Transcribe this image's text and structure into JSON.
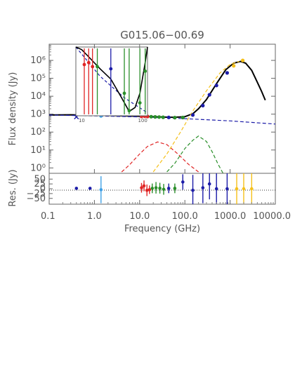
{
  "chart_data": {
    "type": "scatter",
    "title": "G015.06−00.69",
    "xlabel": "Frequency (GHz)",
    "x_scale": "log",
    "xlim": [
      0.1,
      10000
    ],
    "x_tick_labels": [
      "0.1",
      "1.0",
      "10.0",
      "100.0",
      "1000.0",
      "10000.0"
    ],
    "panels": [
      {
        "name": "sed",
        "ylabel": "Flux density (Jy)",
        "y_scale": "log",
        "ylim": [
          0.5,
          8000000
        ],
        "y_tick_labels": [
          "10⁰",
          "10¹",
          "10²",
          "10³",
          "10⁴",
          "10⁵",
          "10⁶"
        ],
        "points": [
          {
            "x": 0.4,
            "y": 700,
            "color": "#1c1ca8",
            "marker": "x"
          },
          {
            "x": 1.4,
            "y": 800,
            "color": "#3ea0e6"
          },
          {
            "x": 11,
            "y": 750,
            "color": "#e02424"
          },
          {
            "x": 13,
            "y": 760,
            "color": "#e02424"
          },
          {
            "x": 15,
            "y": 740,
            "color": "#e02424"
          },
          {
            "x": 18,
            "y": 720,
            "color": "#2a8f2a"
          },
          {
            "x": 22,
            "y": 700,
            "color": "#2a8f2a"
          },
          {
            "x": 27,
            "y": 690,
            "color": "#2a8f2a"
          },
          {
            "x": 33,
            "y": 670,
            "color": "#2a8f2a"
          },
          {
            "x": 44,
            "y": 660,
            "color": "#1c1ca8"
          },
          {
            "x": 60,
            "y": 640,
            "color": "#2a8f2a"
          },
          {
            "x": 90,
            "y": 650,
            "color": "#2a8f2a"
          },
          {
            "x": 150,
            "y": 900,
            "color": "#1c1ca8"
          },
          {
            "x": 250,
            "y": 3000,
            "color": "#1c1ca8"
          },
          {
            "x": 350,
            "y": 12000,
            "color": "#1c1ca8"
          },
          {
            "x": 500,
            "y": 40000,
            "color": "#1c1ca8"
          },
          {
            "x": 860,
            "y": 200000,
            "color": "#1c1ca8"
          },
          {
            "x": 1200,
            "y": 500000,
            "color": "#f5c01a"
          },
          {
            "x": 1900,
            "y": 1000000,
            "color": "#f5c01a"
          }
        ],
        "curves": [
          {
            "component": "total",
            "color": "#000000",
            "dash": "solid",
            "points": [
              [
                0.1,
                900
              ],
              [
                0.3,
                920
              ],
              [
                1,
                870
              ],
              [
                3,
                820
              ],
              [
                10,
                760
              ],
              [
                20,
                720
              ],
              [
                40,
                680
              ],
              [
                60,
                670
              ],
              [
                100,
                720
              ],
              [
                150,
                1050
              ],
              [
                200,
                2000
              ],
              [
                300,
                6500
              ],
              [
                500,
                50000
              ],
              [
                800,
                300000
              ],
              [
                1200,
                700000
              ],
              [
                1700,
                880000
              ],
              [
                2200,
                700000
              ],
              [
                3000,
                280000
              ],
              [
                4000,
                60000
              ],
              [
                5000,
                18000
              ],
              [
                6000,
                6000
              ]
            ]
          },
          {
            "component": "free-free",
            "color": "#1c1ca8",
            "dash": "dashed",
            "points": [
              [
                0.1,
                900
              ],
              [
                1,
                800
              ],
              [
                10,
                700
              ],
              [
                100,
                560
              ],
              [
                1000,
                420
              ],
              [
                10000,
                280
              ]
            ]
          },
          {
            "component": "component-red",
            "color": "#e02424",
            "dash": "dashed",
            "points": [
              [
                4,
                0.6
              ],
              [
                6,
                1.5
              ],
              [
                10,
                6
              ],
              [
                15,
                16
              ],
              [
                25,
                28
              ],
              [
                40,
                20
              ],
              [
                70,
                6
              ],
              [
                120,
                1.6
              ],
              [
                200,
                0.6
              ]
            ]
          },
          {
            "component": "component-green",
            "color": "#2a8f2a",
            "dash": "dashed",
            "points": [
              [
                40,
                0.6
              ],
              [
                60,
                1.8
              ],
              [
                100,
                12
              ],
              [
                150,
                35
              ],
              [
                200,
                60
              ],
              [
                300,
                30
              ],
              [
                400,
                8
              ],
              [
                550,
                1.5
              ],
              [
                700,
                0.5
              ]
            ]
          },
          {
            "component": "component-yellow",
            "color": "#f5c01a",
            "dash": "dashed",
            "points": [
              [
                20,
                0.6
              ],
              [
                40,
                6
              ],
              [
                80,
                100
              ],
              [
                150,
                1500
              ],
              [
                300,
                20000
              ],
              [
                600,
                200000
              ],
              [
                1000,
                600000
              ],
              [
                1600,
                880000
              ]
            ]
          }
        ],
        "inset": {
          "xlim": [
            8,
            120
          ],
          "ylim": [
            500,
            3000
          ],
          "x_tick_labels": [
            "10",
            "100"
          ],
          "points": [
            {
              "x": 11,
              "y": 1900,
              "color": "#e02424"
            },
            {
              "x": 13,
              "y": 2000,
              "color": "#e02424"
            },
            {
              "x": 15,
              "y": 1800,
              "color": "#e02424"
            },
            {
              "x": 18,
              "y": 1800,
              "color": "#2a8f2a"
            },
            {
              "x": 30,
              "y": 1700,
              "color": "#1c1ca8"
            },
            {
              "x": 50,
              "y": 900,
              "color": "#2a8f2a"
            },
            {
              "x": 60,
              "y": 570,
              "color": "#2a8f2a"
            },
            {
              "x": 90,
              "y": 700,
              "color": "#2a8f2a"
            },
            {
              "x": 110,
              "y": 1600,
              "color": "#2a8f2a"
            }
          ]
        }
      },
      {
        "name": "residuals",
        "ylabel": "Res. (Jy)",
        "y_scale": "linear",
        "ylim": [
          -80,
          80
        ],
        "y_tick_labels": [
          "−50",
          "−25",
          "0",
          "25",
          "50"
        ],
        "points": [
          {
            "x": 0.4,
            "y": 2,
            "err": 0,
            "color": "#1c1ca8"
          },
          {
            "x": 0.8,
            "y": 2,
            "err": 0,
            "color": "#1c1ca8"
          },
          {
            "x": 1.4,
            "y": -5,
            "err": 70,
            "color": "#3ea0e6"
          },
          {
            "x": 11,
            "y": 5,
            "err": 25,
            "color": "#e02424"
          },
          {
            "x": 12.5,
            "y": 15,
            "err": 28,
            "color": "#e02424"
          },
          {
            "x": 14.5,
            "y": -8,
            "err": 30,
            "color": "#e02424"
          },
          {
            "x": 16.5,
            "y": -5,
            "err": 22,
            "color": "#e02424"
          },
          {
            "x": 19,
            "y": 2,
            "err": 25,
            "color": "#2a8f2a"
          },
          {
            "x": 23,
            "y": 5,
            "err": 30,
            "color": "#2a8f2a"
          },
          {
            "x": 28,
            "y": 3,
            "err": 28,
            "color": "#2a8f2a"
          },
          {
            "x": 34,
            "y": -3,
            "err": 28,
            "color": "#2a8f2a"
          },
          {
            "x": 44,
            "y": 2,
            "err": 25,
            "color": "#1c1ca8"
          },
          {
            "x": 60,
            "y": 2,
            "err": 25,
            "color": "#2a8f2a"
          },
          {
            "x": 90,
            "y": 35,
            "err": 40,
            "color": "#1c1ca8"
          },
          {
            "x": 150,
            "y": -8,
            "err": 80,
            "color": "#1c1ca8"
          },
          {
            "x": 250,
            "y": 5,
            "err": 80,
            "color": "#1c1ca8"
          },
          {
            "x": 350,
            "y": 25,
            "err": 80,
            "color": "#1c1ca8"
          },
          {
            "x": 500,
            "y": 0,
            "err": 80,
            "color": "#1c1ca8"
          },
          {
            "x": 860,
            "y": 0,
            "err": 80,
            "color": "#1c1ca8"
          },
          {
            "x": 1400,
            "y": 0,
            "err": 80,
            "color": "#f5c01a"
          },
          {
            "x": 2000,
            "y": 0,
            "err": 80,
            "color": "#f5c01a"
          },
          {
            "x": 3000,
            "y": 0,
            "err": 80,
            "color": "#f5c01a"
          }
        ]
      }
    ]
  }
}
